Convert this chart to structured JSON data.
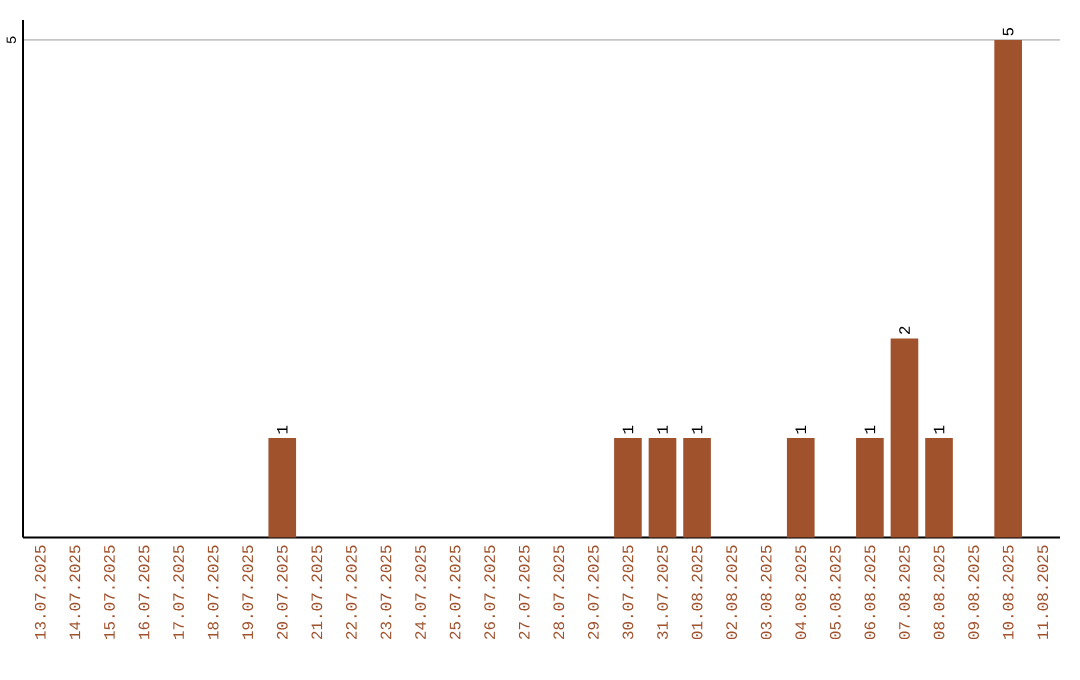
{
  "chart_data": {
    "type": "bar",
    "categories": [
      "13.07.2025",
      "14.07.2025",
      "15.07.2025",
      "16.07.2025",
      "17.07.2025",
      "18.07.2025",
      "19.07.2025",
      "20.07.2025",
      "21.07.2025",
      "22.07.2025",
      "23.07.2025",
      "24.07.2025",
      "25.07.2025",
      "26.07.2025",
      "27.07.2025",
      "28.07.2025",
      "29.07.2025",
      "30.07.2025",
      "31.07.2025",
      "01.08.2025",
      "02.08.2025",
      "03.08.2025",
      "04.08.2025",
      "05.08.2025",
      "06.08.2025",
      "07.08.2025",
      "08.08.2025",
      "09.08.2025",
      "10.08.2025",
      "11.08.2025"
    ],
    "values": [
      0,
      0,
      0,
      0,
      0,
      0,
      0,
      1,
      0,
      0,
      0,
      0,
      0,
      0,
      0,
      0,
      0,
      1,
      1,
      1,
      0,
      0,
      1,
      0,
      1,
      2,
      1,
      0,
      5,
      0
    ],
    "value_labels": [
      null,
      null,
      null,
      null,
      null,
      null,
      null,
      "1",
      null,
      null,
      null,
      null,
      null,
      null,
      null,
      null,
      null,
      "1",
      "1",
      "1",
      null,
      null,
      "1",
      null,
      "1",
      "2",
      "1",
      null,
      "5",
      null
    ],
    "color": "#a0522d",
    "ylim": [
      0,
      5.2
    ],
    "yticks": [
      5
    ],
    "grid": "y"
  }
}
